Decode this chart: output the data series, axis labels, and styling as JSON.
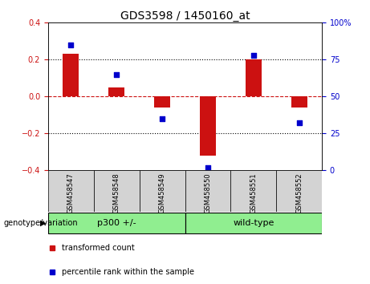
{
  "title": "GDS3598 / 1450160_at",
  "samples": [
    "GSM458547",
    "GSM458548",
    "GSM458549",
    "GSM458550",
    "GSM458551",
    "GSM458552"
  ],
  "bar_values": [
    0.23,
    0.05,
    -0.06,
    -0.32,
    0.2,
    -0.06
  ],
  "percentile_values": [
    85,
    65,
    35,
    2,
    78,
    32
  ],
  "ylim": [
    -0.4,
    0.4
  ],
  "yticks_left": [
    -0.4,
    -0.2,
    0.0,
    0.2,
    0.4
  ],
  "yticks_right": [
    0,
    25,
    50,
    75,
    100
  ],
  "bar_color": "#cc1111",
  "dot_color": "#0000cc",
  "hline_color": "#cc1111",
  "dotted_line_color": "#000000",
  "group_p300_label": "p300 +/-",
  "group_wt_label": "wild-type",
  "group_color": "#90ee90",
  "group_label_text": "genotype/variation",
  "legend_bar_label": "transformed count",
  "legend_dot_label": "percentile rank within the sample",
  "title_fontsize": 10,
  "tick_fontsize": 7,
  "sample_fontsize": 6,
  "group_fontsize": 8,
  "legend_fontsize": 7,
  "group_text_fontsize": 7,
  "bar_width": 0.35
}
